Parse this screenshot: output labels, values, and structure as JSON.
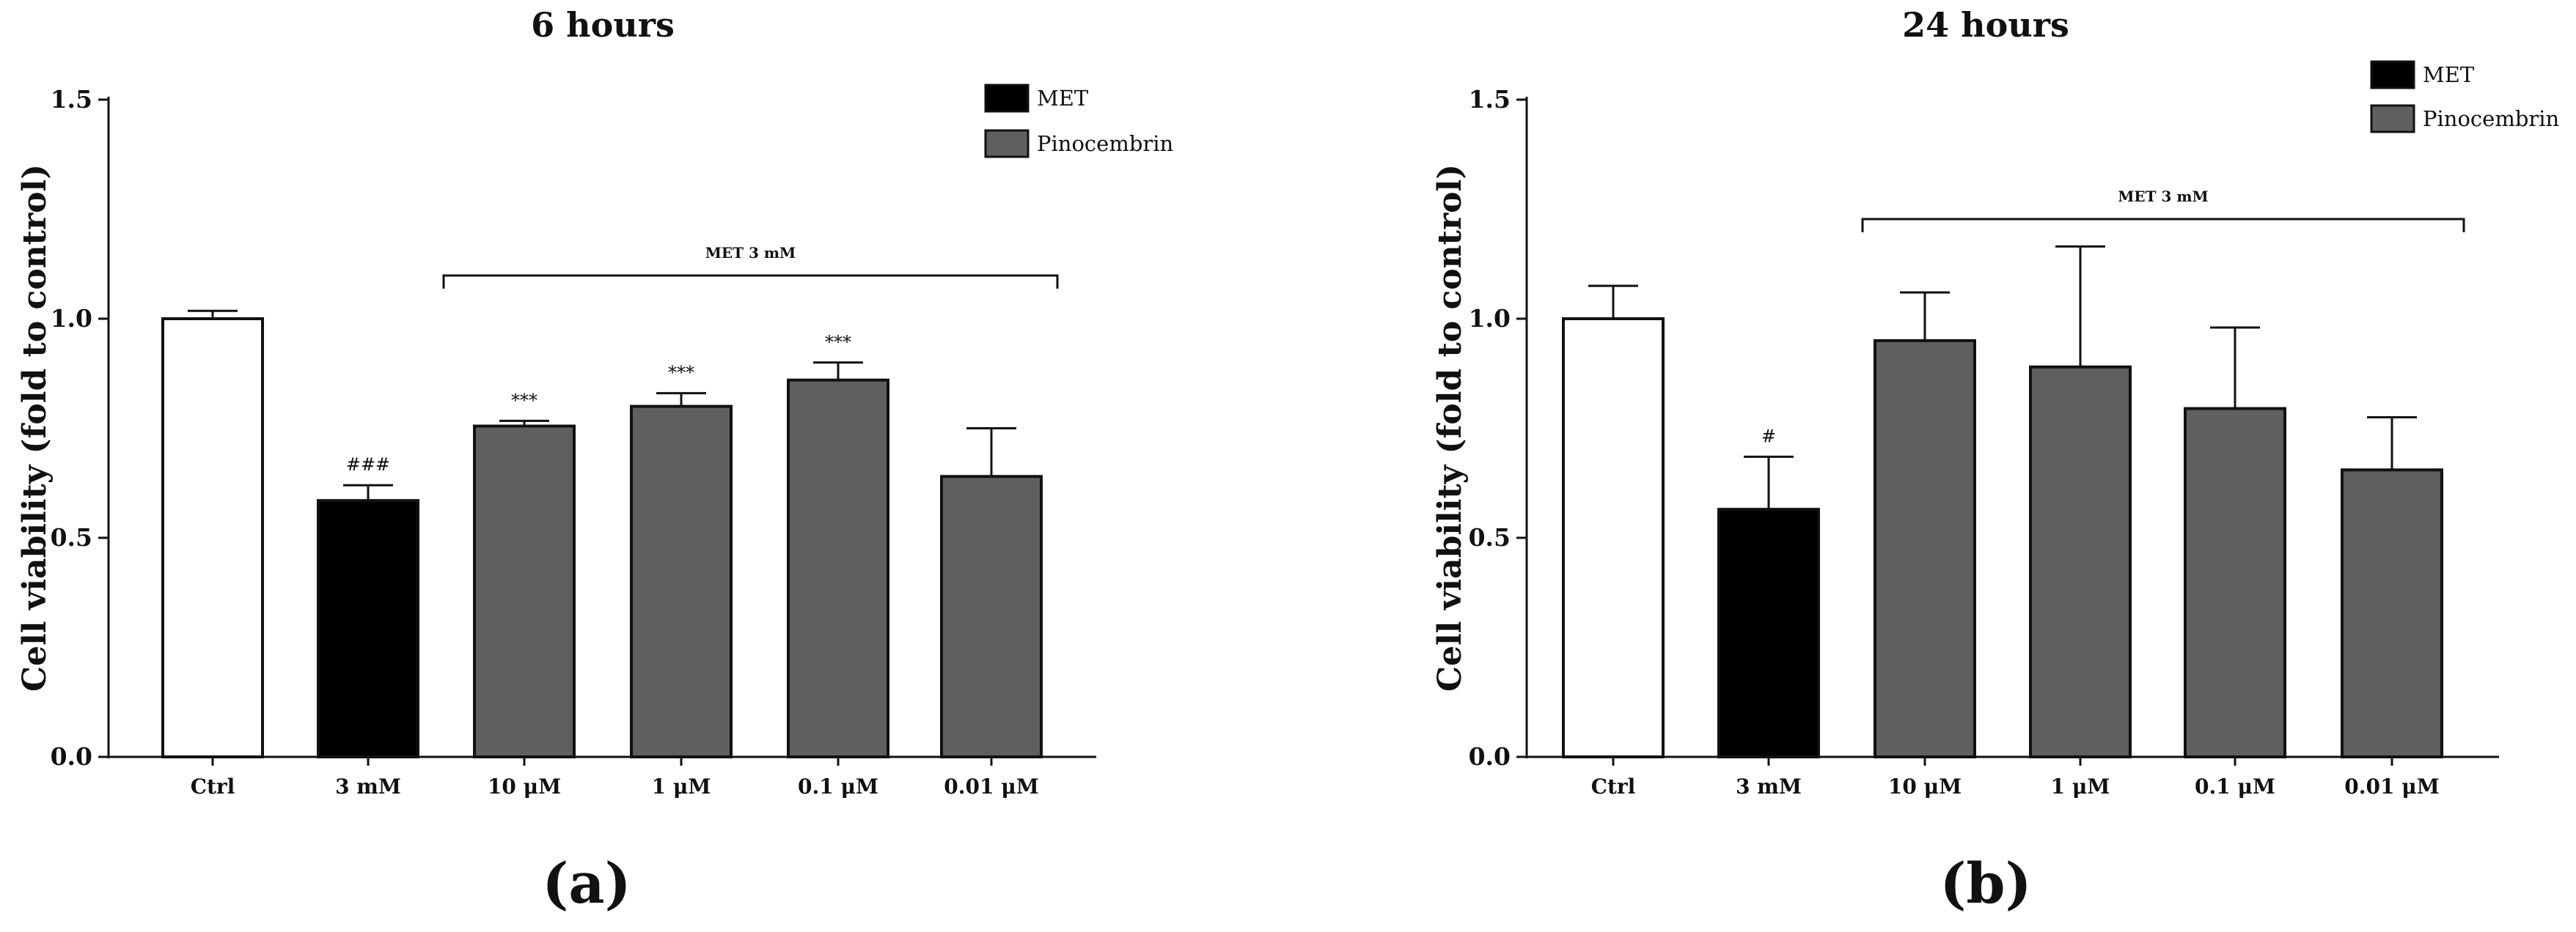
{
  "chart_data": [
    {
      "type": "bar",
      "title": "6 hours",
      "panel_label": "(a)",
      "ylabel": "Cell viability (fold to control)",
      "xlabel": "",
      "ylim": [
        0,
        1.5
      ],
      "yticks": [
        "0.0",
        "0.5",
        "1.0",
        "1.5"
      ],
      "ytick_values": [
        0,
        0.5,
        1.0,
        1.5
      ],
      "categories": [
        "Ctrl",
        "3 mM",
        "10 μM",
        "1 μM",
        "0.1 μM",
        "0.01 μM"
      ],
      "values": [
        1.0,
        0.585,
        0.755,
        0.8,
        0.86,
        0.64
      ],
      "errors": [
        0.018,
        0.035,
        0.012,
        0.03,
        0.04,
        0.11
      ],
      "groups": [
        "control",
        "MET",
        "Pinocembrin",
        "Pinocembrin",
        "Pinocembrin",
        "Pinocembrin"
      ],
      "annotations": [
        "",
        "###",
        "***",
        "***",
        "***",
        ""
      ],
      "bracket": {
        "label": "MET 3 mM",
        "from": 2,
        "to": 5
      },
      "legend": [
        {
          "label": "MET",
          "color": "#000000"
        },
        {
          "label": "Pinocembrin",
          "color": "#5f5f5f"
        }
      ]
    },
    {
      "type": "bar",
      "title": "24 hours",
      "panel_label": "(b)",
      "ylabel": "Cell viability (fold to control)",
      "xlabel": "",
      "ylim": [
        0,
        1.5
      ],
      "yticks": [
        "0.0",
        "0.5",
        "1.0",
        "1.5"
      ],
      "ytick_values": [
        0,
        0.5,
        1.0,
        1.5
      ],
      "categories": [
        "Ctrl",
        "3 mM",
        "10 μM",
        "1 μM",
        "0.1 μM",
        "0.01 μM"
      ],
      "values": [
        1.0,
        0.565,
        0.95,
        0.89,
        0.795,
        0.655
      ],
      "errors": [
        0.075,
        0.12,
        0.11,
        0.275,
        0.185,
        0.12
      ],
      "groups": [
        "control",
        "MET",
        "Pinocembrin",
        "Pinocembrin",
        "Pinocembrin",
        "Pinocembrin"
      ],
      "annotations": [
        "",
        "#",
        "",
        "",
        "",
        ""
      ],
      "bracket": {
        "label": "MET 3 mM",
        "from": 2,
        "to": 5
      },
      "legend": [
        {
          "label": "MET",
          "color": "#000000"
        },
        {
          "label": "Pinocembrin",
          "color": "#5f5f5f"
        }
      ]
    }
  ],
  "colors": {
    "control": "#ffffff",
    "MET": "#000000",
    "Pinocembrin": "#5f5f5f",
    "axis": "#111111"
  }
}
